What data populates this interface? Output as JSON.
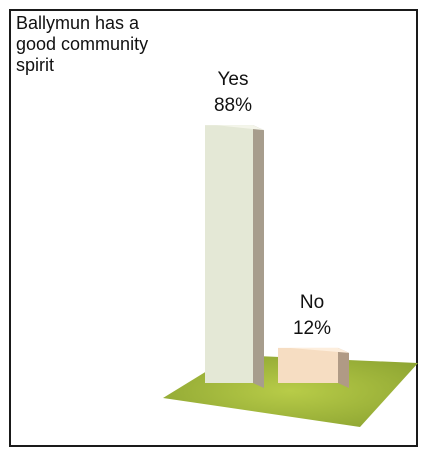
{
  "chart_data": {
    "type": "bar",
    "title": "Ballymun has a good community spirit",
    "categories": [
      "Yes",
      "No"
    ],
    "values": [
      88,
      12
    ],
    "value_labels": [
      "88%",
      "12%"
    ],
    "ylim": [
      0,
      100
    ],
    "grid": false,
    "colors": {
      "bar_front": [
        "#e4e8d6",
        "#f6ddc2"
      ],
      "bar_side": [
        "#a79d8d",
        "#b09a85"
      ],
      "bar_top": [
        "#f4f5ea",
        "#fdeedd"
      ],
      "floor": "#a9be3a"
    }
  }
}
